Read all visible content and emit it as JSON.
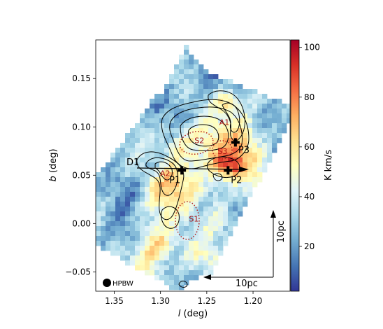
{
  "chart_data": {
    "type": "heatmap",
    "xlabel_var": "l",
    "xlabel_unit": "(deg)",
    "ylabel_var": "b",
    "ylabel_unit": "(deg)",
    "xlim": [
      1.37,
      1.16
    ],
    "ylim": [
      -0.07,
      0.19
    ],
    "x_ticks": [
      1.35,
      1.3,
      1.25,
      1.2
    ],
    "x_tick_labels": [
      "1.35",
      "1.30",
      "1.25",
      "1.20"
    ],
    "y_ticks": [
      -0.05,
      0.0,
      0.05,
      0.1,
      0.15
    ],
    "y_tick_labels": [
      "−0.05",
      "0.00",
      "0.05",
      "0.10",
      "0.15"
    ],
    "colorbar": {
      "label": "K km/s",
      "range": [
        2,
        103
      ],
      "ticks": [
        20,
        40,
        60,
        80,
        100
      ],
      "tick_labels": [
        "20",
        "40",
        "60",
        "80",
        "100"
      ],
      "colormap": "RdYlBu_r"
    },
    "point_sources": [
      {
        "name": "P1",
        "l": 1.277,
        "b": 0.055
      },
      {
        "name": "P2",
        "l": 1.227,
        "b": 0.055
      },
      {
        "name": "P3",
        "l": 1.219,
        "b": 0.084
      }
    ],
    "regions": [
      {
        "name": "A1",
        "l": 1.231,
        "b": 0.102
      },
      {
        "name": "A2",
        "l": 1.295,
        "b": 0.049
      },
      {
        "name": "S1",
        "l": 1.264,
        "b": 0.002
      },
      {
        "name": "S2",
        "l": 1.258,
        "b": 0.083
      },
      {
        "name": "S3",
        "l": 1.233,
        "b": 0.072
      }
    ],
    "arrow_label": "D1",
    "beam_label": "HPBW",
    "scalebar_labels": {
      "horizontal": "10pc",
      "vertical": "10pc"
    },
    "colors": {
      "point_marker": "#000000",
      "region_ellipse": "#b22222",
      "region_text": "#aa1111",
      "contours": "#000000"
    }
  }
}
